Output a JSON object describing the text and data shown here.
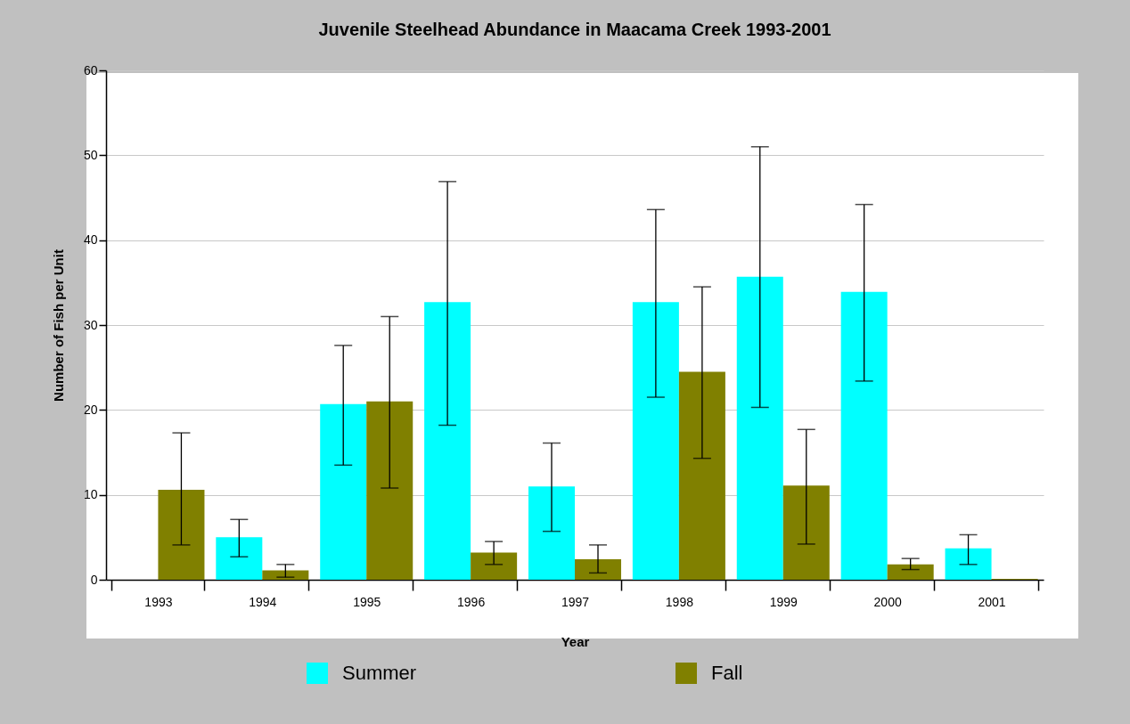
{
  "chart_data": {
    "type": "bar",
    "title": "Juvenile Steelhead Abundance in Maacama Creek 1993-2001",
    "xlabel": "Year",
    "ylabel": "Number of Fish per Unit",
    "categories": [
      "1993",
      "1994",
      "1995",
      "1996",
      "1997",
      "1998",
      "1999",
      "2000",
      "2001"
    ],
    "series": [
      {
        "name": "Summer",
        "color": "#00ffff",
        "values": [
          null,
          5.0,
          20.7,
          32.7,
          11.0,
          32.7,
          35.7,
          33.9,
          3.7
        ],
        "errors": [
          null,
          [
            2.7,
            7.1
          ],
          [
            13.5,
            27.6
          ],
          [
            18.2,
            46.9
          ],
          [
            5.7,
            16.1
          ],
          [
            21.5,
            43.6
          ],
          [
            20.3,
            51.0
          ],
          [
            23.4,
            44.2
          ],
          [
            1.8,
            5.3
          ]
        ]
      },
      {
        "name": "Fall",
        "color": "#808000",
        "values": [
          10.6,
          1.1,
          21.0,
          3.2,
          2.4,
          24.5,
          11.1,
          1.8,
          0.1
        ],
        "errors": [
          [
            4.1,
            17.3
          ],
          [
            0.3,
            1.8
          ],
          [
            10.8,
            31.0
          ],
          [
            1.8,
            4.5
          ],
          [
            0.8,
            4.1
          ],
          [
            14.3,
            34.5
          ],
          [
            4.2,
            17.7
          ],
          [
            1.2,
            2.5
          ],
          null
        ]
      }
    ],
    "ylim": [
      0,
      60
    ],
    "yticks": [
      0,
      10,
      20,
      30,
      40,
      50,
      60
    ],
    "grid": "y",
    "legend": "bottom"
  }
}
